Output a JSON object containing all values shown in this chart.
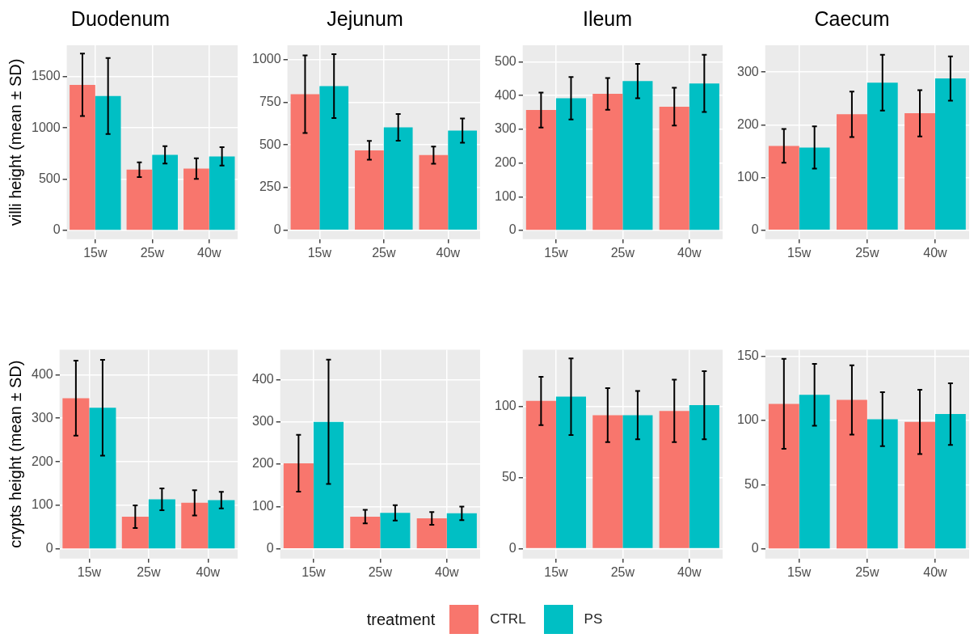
{
  "chart_data": [
    {
      "type": "bar",
      "title": "Duodenum",
      "ylabel": "villi height (mean ± SD)",
      "categories": [
        "15w",
        "25w",
        "40w"
      ],
      "ylim": [
        -86,
        1806
      ],
      "yticks": [
        0,
        500,
        1000,
        1500
      ],
      "grid": true,
      "legend": "bottom",
      "legend_title": "treatment",
      "series": [
        {
          "name": "CTRL",
          "color": "#f8766d",
          "values": [
            1420,
            592,
            603
          ],
          "errors": [
            305,
            72,
            100
          ]
        },
        {
          "name": "PS",
          "color": "#00bfc4",
          "values": [
            1311,
            737,
            722
          ],
          "errors": [
            370,
            85,
            90
          ]
        }
      ]
    },
    {
      "type": "bar",
      "title": "Jejunum",
      "categories": [
        "15w",
        "25w",
        "40w"
      ],
      "ylim": [
        -52,
        1083
      ],
      "yticks": [
        0,
        250,
        500,
        750,
        1000
      ],
      "grid": true,
      "series": [
        {
          "color": "#f8766d",
          "values": [
            797,
            468,
            440
          ],
          "errors": [
            227,
            55,
            50
          ]
        },
        {
          "color": "#00bfc4",
          "values": [
            844,
            603,
            584
          ],
          "errors": [
            187,
            78,
            71
          ]
        }
      ]
    },
    {
      "type": "bar",
      "title": "Ileum",
      "categories": [
        "15w",
        "25w",
        "40w"
      ],
      "ylim": [
        -26,
        549
      ],
      "yticks": [
        0,
        100,
        200,
        300,
        400,
        500
      ],
      "grid": true,
      "series": [
        {
          "color": "#f8766d",
          "values": [
            357,
            405,
            367
          ],
          "errors": [
            52,
            47,
            56
          ]
        },
        {
          "color": "#00bfc4",
          "values": [
            392,
            443,
            436
          ],
          "errors": [
            63,
            51,
            85
          ]
        }
      ]
    },
    {
      "type": "bar",
      "title": "Caecum",
      "categories": [
        "15w",
        "25w",
        "40w"
      ],
      "ylim": [
        -17,
        351
      ],
      "yticks": [
        0,
        100,
        200,
        300
      ],
      "grid": true,
      "series": [
        {
          "color": "#f8766d",
          "values": [
            160,
            220,
            222
          ],
          "errors": [
            32,
            43,
            44
          ]
        },
        {
          "color": "#00bfc4",
          "values": [
            157,
            280,
            288
          ],
          "errors": [
            40,
            53,
            42
          ]
        }
      ]
    },
    {
      "type": "bar",
      "ylabel": "crypts height (mean ± SD)",
      "categories": [
        "15w",
        "25w",
        "40w"
      ],
      "ylim": [
        -22,
        457
      ],
      "yticks": [
        0,
        100,
        200,
        300,
        400
      ],
      "grid": true,
      "series": [
        {
          "color": "#f8766d",
          "values": [
            346,
            74,
            106
          ],
          "errors": [
            86,
            26,
            29
          ]
        },
        {
          "color": "#00bfc4",
          "values": [
            324,
            114,
            112
          ],
          "errors": [
            110,
            25,
            19
          ]
        }
      ]
    },
    {
      "type": "bar",
      "categories": [
        "15w",
        "25w",
        "40w"
      ],
      "ylim": [
        -23,
        470
      ],
      "yticks": [
        0,
        100,
        200,
        300,
        400
      ],
      "grid": true,
      "series": [
        {
          "color": "#f8766d",
          "values": [
            202,
            76,
            72
          ],
          "errors": [
            67,
            16,
            15
          ]
        },
        {
          "color": "#00bfc4",
          "values": [
            300,
            85,
            84
          ],
          "errors": [
            147,
            18,
            16
          ]
        }
      ]
    },
    {
      "type": "bar",
      "categories": [
        "15w",
        "25w",
        "40w"
      ],
      "ylim": [
        -7,
        140
      ],
      "yticks": [
        0,
        50,
        100
      ],
      "grid": true,
      "series": [
        {
          "color": "#f8766d",
          "values": [
            104,
            94,
            97
          ],
          "errors": [
            17,
            19,
            22
          ]
        },
        {
          "color": "#00bfc4",
          "values": [
            107,
            94,
            101
          ],
          "errors": [
            27,
            17,
            24
          ]
        }
      ]
    },
    {
      "type": "bar",
      "categories": [
        "15w",
        "25w",
        "40w"
      ],
      "ylim": [
        -7.4,
        155
      ],
      "yticks": [
        0,
        50,
        100,
        150
      ],
      "grid": true,
      "series": [
        {
          "color": "#f8766d",
          "values": [
            113,
            116,
            99
          ],
          "errors": [
            35,
            27,
            25
          ]
        },
        {
          "color": "#00bfc4",
          "values": [
            120,
            101,
            105
          ],
          "errors": [
            24,
            21,
            24
          ]
        }
      ]
    }
  ]
}
